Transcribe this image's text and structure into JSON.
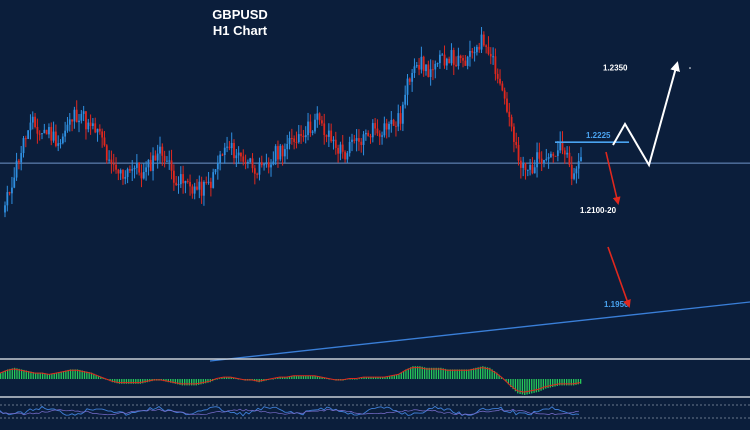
{
  "chart_data": {
    "type": "candlestick",
    "symbol": "GBPUSD",
    "timeframe": "H1 Chart",
    "price_range": [
      1.188,
      1.245
    ],
    "colors": {
      "background": "#0b1e3b",
      "bull": "#2f8fe0",
      "bear": "#e0281e",
      "trendline": "#3a7fd8",
      "horizontal_line": "#6f94c8",
      "level_blue": "#4aa3f0",
      "level_white": "#ffffff",
      "arrow_red": "#e0281e",
      "macd_hist": "#26c95a",
      "macd_signal": "#e0281e",
      "separator": "#c8cdd6"
    },
    "levels": [
      {
        "label": "1.2350",
        "value": 1.235,
        "color": "white"
      },
      {
        "label": "1.2225",
        "value": 1.2225,
        "color": "blue"
      },
      {
        "label": "1.2100-20",
        "value": 1.211,
        "color": "white"
      },
      {
        "label": "1.1950",
        "value": 1.195,
        "color": "blue"
      }
    ],
    "horizontal_line": 1.219,
    "price_path": [
      1.2115,
      1.216,
      1.22,
      1.2235,
      1.2255,
      1.224,
      1.2245,
      1.2235,
      1.2225,
      1.225,
      1.227,
      1.2275,
      1.225,
      1.2245,
      1.223,
      1.2185,
      1.2175,
      1.217,
      1.2185,
      1.218,
      1.217,
      1.219,
      1.221,
      1.2205,
      1.2175,
      1.216,
      1.2155,
      1.215,
      1.2145,
      1.215,
      1.2165,
      1.22,
      1.2215,
      1.221,
      1.22,
      1.2195,
      1.2185,
      1.2175,
      1.2185,
      1.2205,
      1.2215,
      1.222,
      1.2235,
      1.2245,
      1.225,
      1.2265,
      1.224,
      1.223,
      1.2215,
      1.2205,
      1.222,
      1.2225,
      1.2235,
      1.225,
      1.2245,
      1.2255,
      1.2255,
      1.2265,
      1.232,
      1.2365,
      1.2355,
      1.2345,
      1.2345,
      1.2365,
      1.237,
      1.236,
      1.2355,
      1.2365,
      1.239,
      1.2395,
      1.238,
      1.2335,
      1.23,
      1.2245,
      1.219,
      1.2175,
      1.2185,
      1.22,
      1.221,
      1.2205,
      1.2215,
      1.2195,
      1.216,
      1.22
    ],
    "macd_hist": [
      0.4,
      0.6,
      0.7,
      0.6,
      0.5,
      0.4,
      0.4,
      0.3,
      0.4,
      0.5,
      0.6,
      0.6,
      0.5,
      0.4,
      0.2,
      0.0,
      -0.2,
      -0.3,
      -0.3,
      -0.3,
      -0.3,
      -0.2,
      -0.1,
      -0.1,
      -0.2,
      -0.3,
      -0.4,
      -0.4,
      -0.4,
      -0.3,
      -0.2,
      0.0,
      0.1,
      0.1,
      0.0,
      -0.1,
      -0.1,
      -0.2,
      -0.1,
      0.0,
      0.1,
      0.1,
      0.2,
      0.2,
      0.2,
      0.2,
      0.1,
      0.0,
      -0.1,
      -0.1,
      0.0,
      0.0,
      0.1,
      0.1,
      0.1,
      0.1,
      0.2,
      0.3,
      0.6,
      0.8,
      0.8,
      0.7,
      0.7,
      0.7,
      0.6,
      0.6,
      0.6,
      0.6,
      0.7,
      0.8,
      0.7,
      0.4,
      0.0,
      -0.5,
      -0.9,
      -1.0,
      -0.9,
      -0.8,
      -0.6,
      -0.5,
      -0.4,
      -0.4,
      -0.4,
      -0.3
    ]
  }
}
